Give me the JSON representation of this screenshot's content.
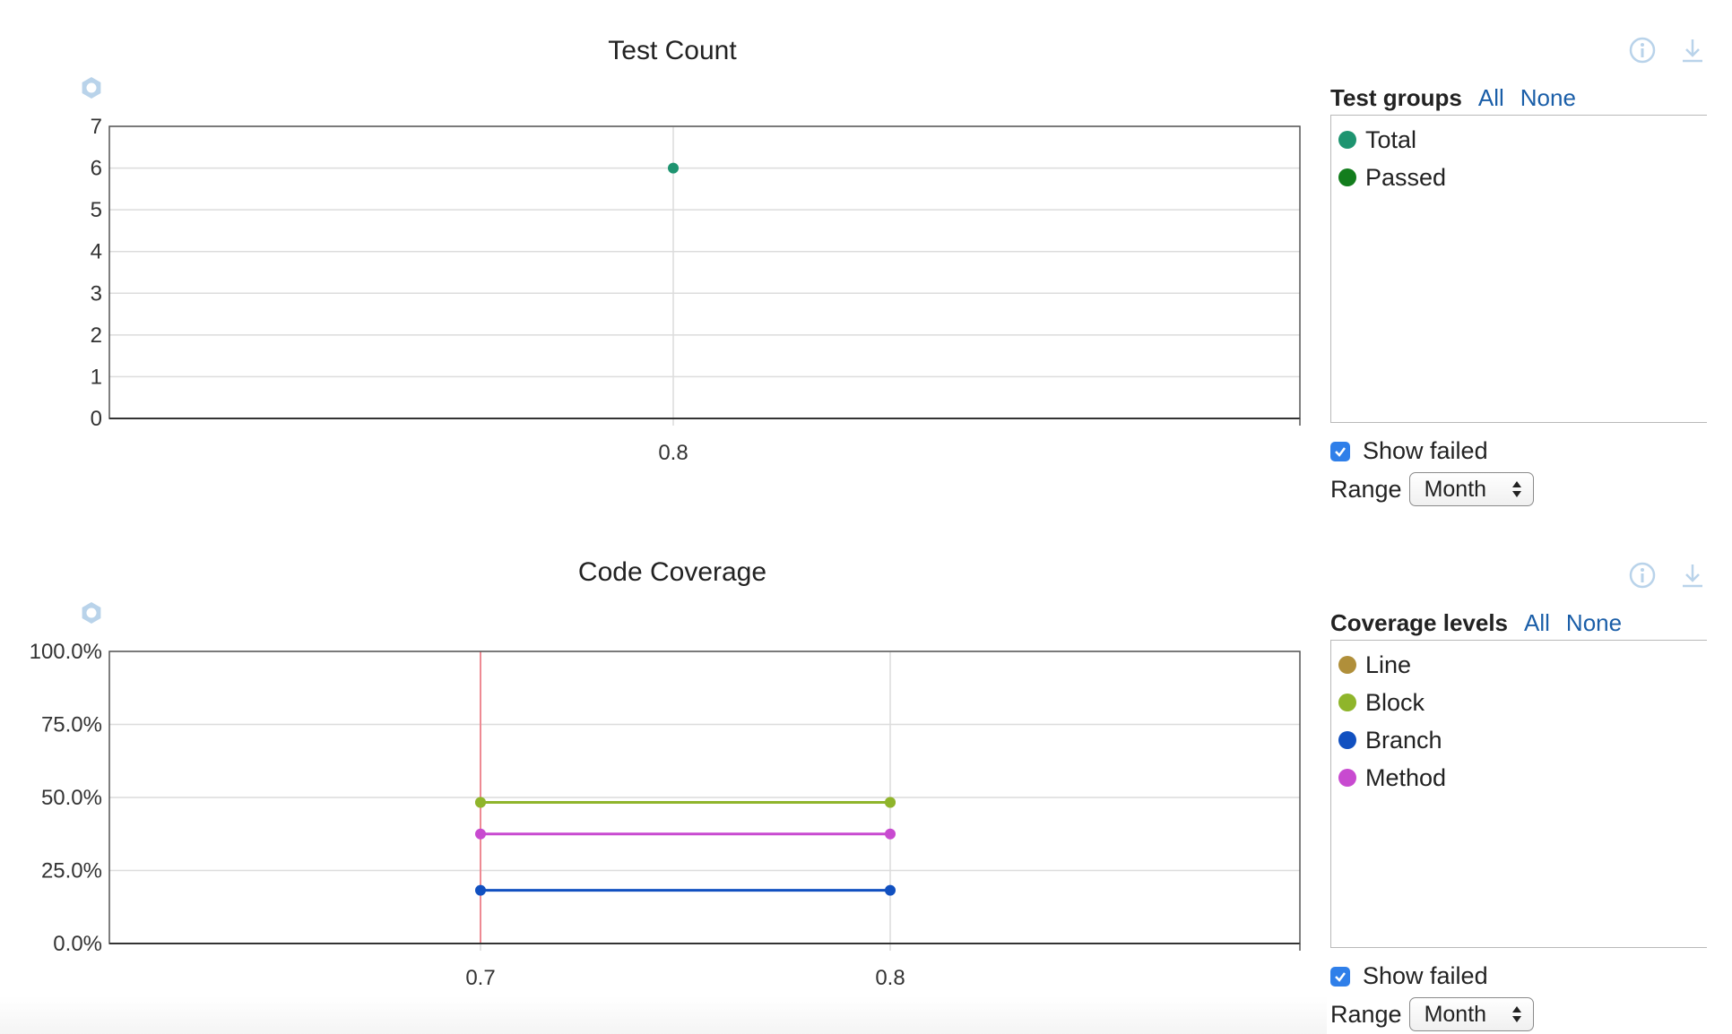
{
  "charts": [
    {
      "title": "Test Count",
      "panel": {
        "heading": "Test groups",
        "all_label": "All",
        "none_label": "None",
        "legend": [
          {
            "name": "Total",
            "color": "#1e9470"
          },
          {
            "name": "Passed",
            "color": "#137d1d"
          }
        ],
        "show_failed_label": "Show failed",
        "show_failed_checked": true,
        "range_label": "Range",
        "range_value": "Month"
      },
      "icons": {
        "settings": "gear-icon",
        "info": "info-icon",
        "download": "download-icon"
      }
    },
    {
      "title": "Code Coverage",
      "panel": {
        "heading": "Coverage levels",
        "all_label": "All",
        "none_label": "None",
        "legend": [
          {
            "name": "Line",
            "color": "#b08f3a"
          },
          {
            "name": "Block",
            "color": "#8fb52b"
          },
          {
            "name": "Branch",
            "color": "#1150c0"
          },
          {
            "name": "Method",
            "color": "#c84ad0"
          }
        ],
        "show_failed_label": "Show failed",
        "show_failed_checked": true,
        "range_label": "Range",
        "range_value": "Month"
      },
      "icons": {
        "settings": "gear-icon",
        "info": "info-icon",
        "download": "download-icon"
      }
    }
  ],
  "chart_data": [
    {
      "type": "scatter",
      "title": "Test Count",
      "xlabel": "",
      "ylabel": "",
      "categories": [
        "0.8"
      ],
      "ylim": [
        0,
        7
      ],
      "yticks": [
        "0",
        "1",
        "2",
        "3",
        "4",
        "5",
        "6",
        "7"
      ],
      "grid": true,
      "legend_placement": "right",
      "series": [
        {
          "name": "Total",
          "color": "#1e9470",
          "values": [
            6
          ]
        }
      ]
    },
    {
      "type": "line",
      "title": "Code Coverage",
      "xlabel": "",
      "ylabel": "",
      "categories": [
        "0.7",
        "0.8"
      ],
      "ylim": [
        0,
        100
      ],
      "yticks": [
        "0.0%",
        "25.0%",
        "50.0%",
        "75.0%",
        "100.0%"
      ],
      "grid": true,
      "legend_placement": "right",
      "failed_marker_at": "0.7",
      "series": [
        {
          "name": "Line",
          "color": "#b08f3a",
          "values": [
            48.3,
            48.3
          ]
        },
        {
          "name": "Block",
          "color": "#8fb52b",
          "values": [
            48.3,
            48.3
          ]
        },
        {
          "name": "Method",
          "color": "#c84ad0",
          "values": [
            37.5,
            37.5
          ]
        },
        {
          "name": "Branch",
          "color": "#1150c0",
          "values": [
            18.2,
            18.2
          ]
        }
      ]
    }
  ]
}
